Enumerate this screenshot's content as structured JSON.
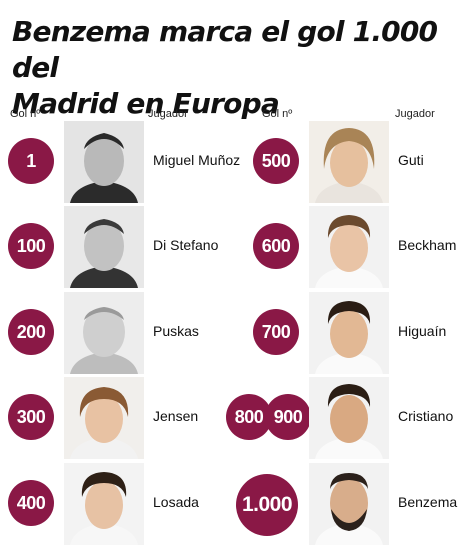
{
  "title_line1": "Benzema marca el gol 1.000 del",
  "title_line2": "Madrid en Europa",
  "col_goal": "Gol nº",
  "col_player": "Jugador",
  "left": [
    {
      "goals": [
        "1"
      ],
      "name": "Miguel Muñoz"
    },
    {
      "goals": [
        "100"
      ],
      "name": "Di Stefano"
    },
    {
      "goals": [
        "200"
      ],
      "name": "Puskas"
    },
    {
      "goals": [
        "300"
      ],
      "name": "Jensen"
    },
    {
      "goals": [
        "400"
      ],
      "name": "Losada"
    }
  ],
  "right": [
    {
      "goals": [
        "500"
      ],
      "name": "Guti"
    },
    {
      "goals": [
        "600"
      ],
      "name": "Beckham"
    },
    {
      "goals": [
        "700"
      ],
      "name": "Higuaín"
    },
    {
      "goals": [
        "800",
        "900"
      ],
      "name": "Cristiano"
    },
    {
      "goals": [
        "1.000"
      ],
      "name": "Benzema"
    }
  ],
  "colors": {
    "accent": "#8a1846"
  }
}
